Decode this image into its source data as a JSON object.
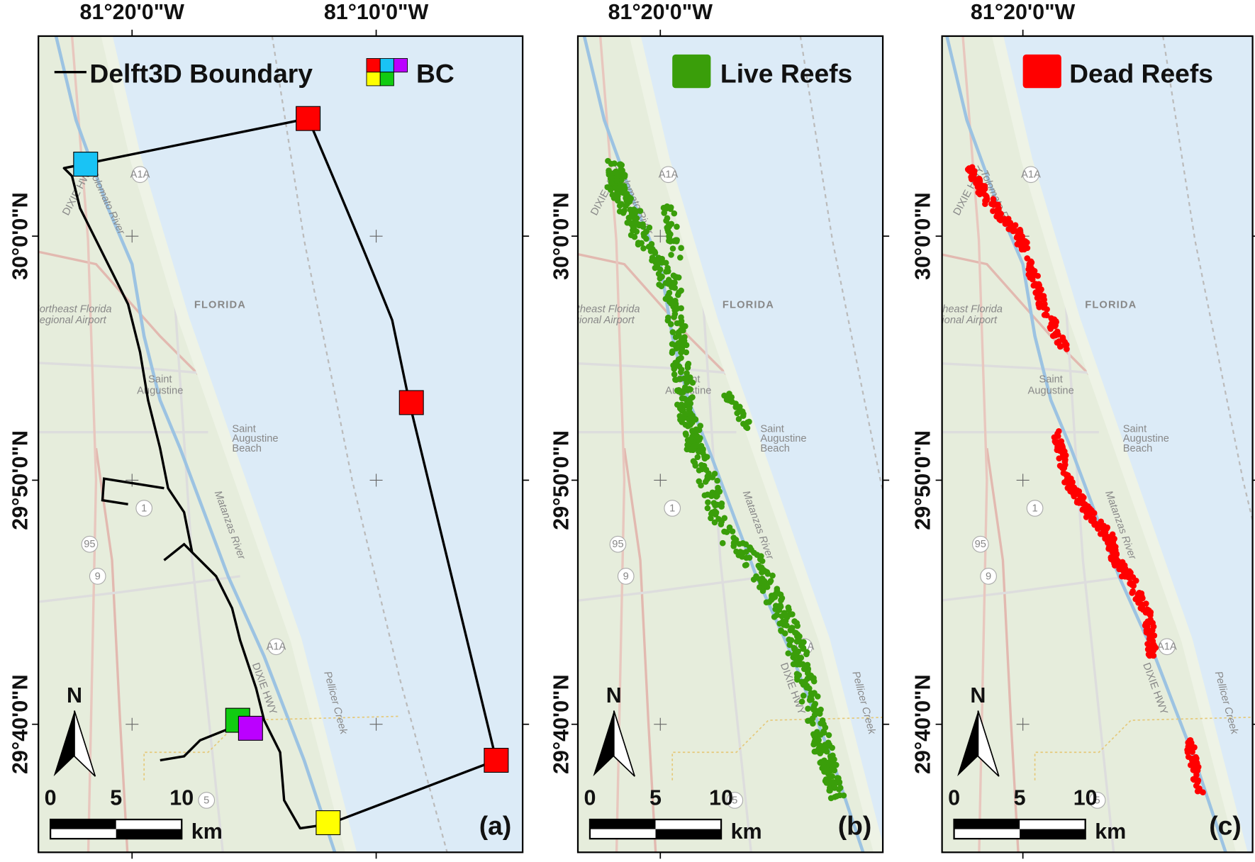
{
  "longitude_labels": [
    "81°20'0\"W",
    "81°10'0\"W"
  ],
  "latitude_labels": [
    "30°0'0\"N",
    "29°50'0\"N",
    "29°40'0\"N"
  ],
  "map_labels": {
    "state": "FLORIDA",
    "city": [
      "Saint",
      "Augustine"
    ],
    "beach": [
      "Saint",
      "Augustine",
      "Beach"
    ],
    "airport": [
      "Northeast Florida",
      "Regional Airport"
    ],
    "highway": "DIXIE HWY",
    "river_north": "Tolomato River",
    "river_south": "Matanzas River",
    "creek": "Pellicer Creek",
    "shield_a1a": "A1A",
    "shield_95": "95",
    "shield_1": "1",
    "shield_9": "9",
    "shield_5": "5"
  },
  "scale_bar": {
    "ticks": [
      "0",
      "5",
      "10"
    ],
    "unit": "km"
  },
  "north_arrow": "N",
  "panels": [
    {
      "panel_label": "(a)",
      "legend": [
        "Delft3D Boundary",
        "BC"
      ]
    },
    {
      "panel_label": "(b)",
      "legend": [
        "Live Reefs"
      ]
    },
    {
      "panel_label": "(c)",
      "legend": [
        "Dead Reefs"
      ]
    }
  ]
}
